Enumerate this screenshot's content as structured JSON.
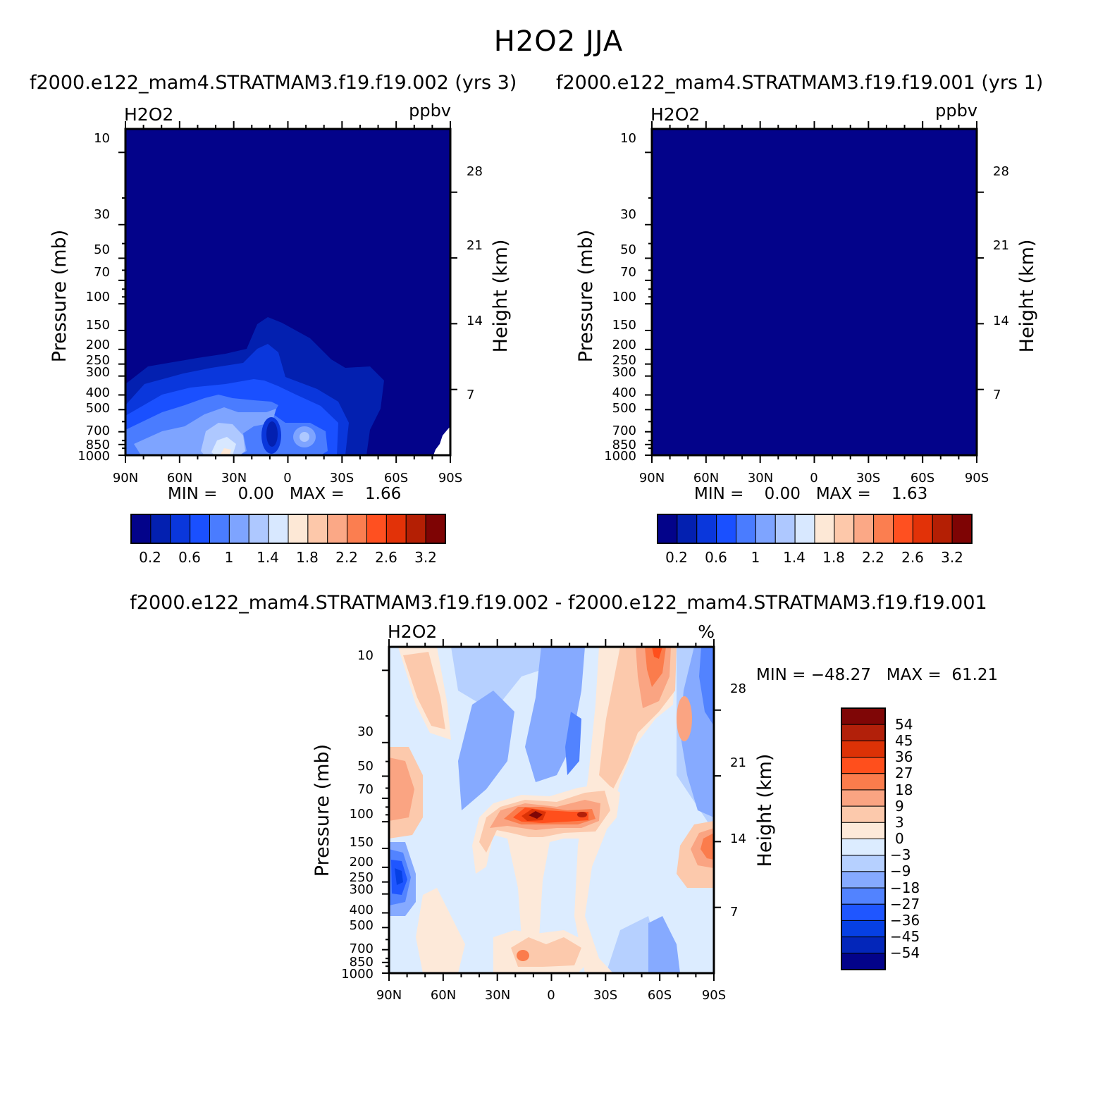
{
  "title": "H2O2 JJA",
  "colors": {
    "abs_scale": [
      "#03038a",
      "#0320b0",
      "#0a37dc",
      "#1a50ff",
      "#4a7cff",
      "#7ea4ff",
      "#aec8ff",
      "#d8e8ff",
      "#fde8d6",
      "#fdc8aa",
      "#fba886",
      "#fb7e50",
      "#ff5020",
      "#e23208",
      "#b41f04",
      "#7e0404"
    ],
    "diff_scale": [
      "#03038a",
      "#0326ba",
      "#0640e4",
      "#1f56ff",
      "#5283ff",
      "#86aaff",
      "#b6d0ff",
      "#dcecff",
      "#fde9d9",
      "#fcc9ac",
      "#faa482",
      "#fb7c4c",
      "#ff4f1c",
      "#dc3206",
      "#b2200a",
      "#7f0606"
    ]
  },
  "panels": [
    {
      "subtitle": "f2000.e122_mam4.STRATMAM3.f19.f19.002 (yrs 3)",
      "variable": "H2O2",
      "units": "ppbv",
      "ylabel_left": "Pressure (mb)",
      "ylabel_right": "Height (km)",
      "min_label": "MIN =",
      "min_value": "0.00",
      "max_label": "MAX =",
      "max_value": "1.66",
      "colorbar_labels": [
        "0.2",
        "0.6",
        "1",
        "1.4",
        "1.8",
        "2.2",
        "2.6",
        "3.2"
      ]
    },
    {
      "subtitle": "f2000.e122_mam4.STRATMAM3.f19.f19.001 (yrs 1)",
      "variable": "H2O2",
      "units": "ppbv",
      "ylabel_left": "Pressure (mb)",
      "ylabel_right": "Height (km)",
      "min_label": "MIN =",
      "min_value": "0.00",
      "max_label": "MAX =",
      "max_value": "1.63",
      "colorbar_labels": [
        "0.2",
        "0.6",
        "1",
        "1.4",
        "1.8",
        "2.2",
        "2.6",
        "3.2"
      ]
    }
  ],
  "diff_panel": {
    "subtitle": "f2000.e122_mam4.STRATMAM3.f19.f19.002 - f2000.e122_mam4.STRATMAM3.f19.f19.001",
    "variable": "H2O2",
    "units": "%",
    "ylabel_left": "Pressure (mb)",
    "ylabel_right": "Height (km)",
    "min_label": "MIN =",
    "min_value": "-48.27",
    "max_label": "MAX =",
    "max_value": "61.21",
    "colorbar_labels": [
      "54",
      "45",
      "36",
      "27",
      "18",
      "9",
      "3",
      "0",
      "-3",
      "-9",
      "-18",
      "-27",
      "-36",
      "-45",
      "-54"
    ]
  },
  "chart_data": [
    {
      "type": "heatmap",
      "title": "f2000.e122_mam4.STRATMAM3.f19.f19.002 (yrs 3)",
      "variable": "H2O2",
      "units": "ppbv",
      "x_ticks": [
        "90N",
        "60N",
        "30N",
        "0",
        "30S",
        "60S",
        "90S"
      ],
      "y_ticks_pressure": [
        "10",
        "30",
        "50",
        "70",
        "100",
        "150",
        "200",
        "250",
        "300",
        "400",
        "500",
        "700",
        "850",
        "1000"
      ],
      "y_ticks_height": [
        "28",
        "21",
        "14",
        "7"
      ],
      "xlabel": "",
      "ylabel": "Pressure (mb)",
      "ylabel_right": "Height (km)",
      "ylim_mb": [
        1000,
        10
      ],
      "log_y": true,
      "levels": [
        0.2,
        0.6,
        1,
        1.4,
        1.8,
        2.2,
        2.6,
        3.2
      ],
      "min": 0.0,
      "max": 1.66
    },
    {
      "type": "heatmap",
      "title": "f2000.e122_mam4.STRATMAM3.f19.f19.001 (yrs 1)",
      "variable": "H2O2",
      "units": "ppbv",
      "x_ticks": [
        "90N",
        "60N",
        "30N",
        "0",
        "30S",
        "60S",
        "90S"
      ],
      "y_ticks_pressure": [
        "10",
        "30",
        "50",
        "70",
        "100",
        "150",
        "200",
        "250",
        "300",
        "400",
        "500",
        "700",
        "850",
        "1000"
      ],
      "y_ticks_height": [
        "28",
        "21",
        "14",
        "7"
      ],
      "xlabel": "",
      "ylabel": "Pressure (mb)",
      "ylabel_right": "Height (km)",
      "ylim_mb": [
        1000,
        10
      ],
      "log_y": true,
      "levels": [
        0.2,
        0.6,
        1,
        1.4,
        1.8,
        2.2,
        2.6,
        3.2
      ],
      "min": 0.0,
      "max": 1.63
    },
    {
      "type": "heatmap",
      "title": "f2000.e122_mam4.STRATMAM3.f19.f19.002 - f2000.e122_mam4.STRATMAM3.f19.f19.001",
      "variable": "H2O2",
      "units": "%",
      "x_ticks": [
        "90N",
        "60N",
        "30N",
        "0",
        "30S",
        "60S",
        "90S"
      ],
      "y_ticks_pressure": [
        "10",
        "30",
        "50",
        "70",
        "100",
        "150",
        "200",
        "250",
        "300",
        "400",
        "500",
        "700",
        "850",
        "1000"
      ],
      "y_ticks_height": [
        "28",
        "21",
        "14",
        "7"
      ],
      "xlabel": "",
      "ylabel": "Pressure (mb)",
      "ylabel_right": "Height (km)",
      "ylim_mb": [
        1000,
        10
      ],
      "log_y": true,
      "levels": [
        -54,
        -45,
        -36,
        -27,
        -18,
        -9,
        -3,
        0,
        3,
        9,
        18,
        27,
        36,
        45,
        54
      ],
      "min": -48.27,
      "max": 61.21
    }
  ]
}
